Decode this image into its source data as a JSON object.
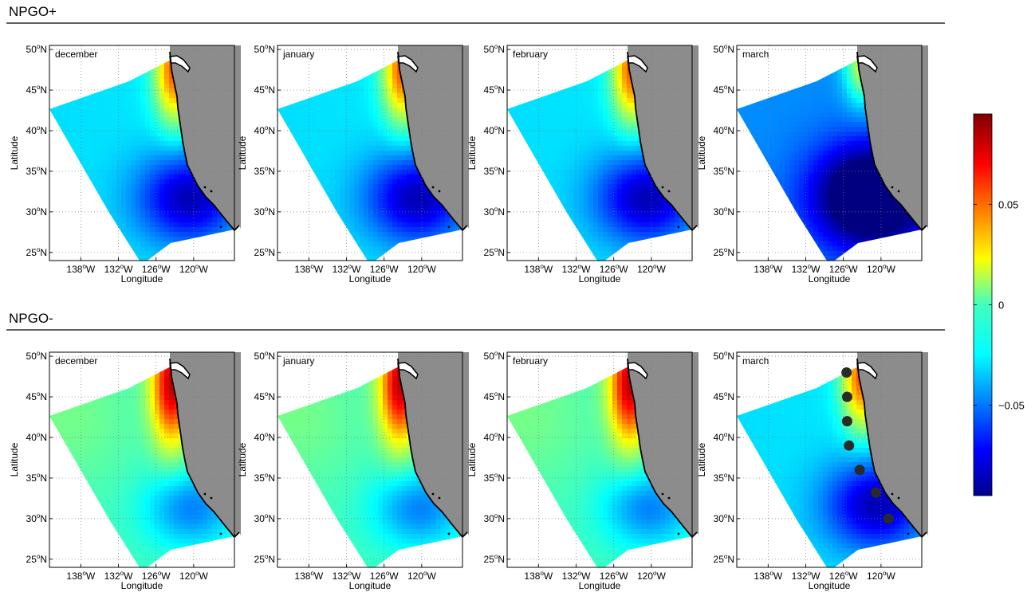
{
  "figure": {
    "sections": [
      {
        "id": "plus",
        "title": "NPGO+",
        "months": [
          "december",
          "january",
          "february",
          "march"
        ],
        "monthly_pattern": [
          "warm-north-cool-south",
          "warm-north-cool-south",
          "warm-north-cool-south",
          "cool-dominant"
        ]
      },
      {
        "id": "minus",
        "title": "NPGO-",
        "months": [
          "december",
          "january",
          "february",
          "march"
        ],
        "monthly_pattern": [
          "warm-north-weak-south",
          "warm-north-weak-south",
          "warm-north-weak-south",
          "warm-north-cool-south"
        ]
      }
    ],
    "axes": {
      "xlabel": "Longitude",
      "ylabel": "Latitude",
      "lat_ticks": [
        50,
        45,
        40,
        35,
        30,
        25
      ],
      "lat_hemisphere": "N",
      "lon_ticks": [
        138,
        132,
        126,
        120
      ],
      "lon_hemisphere": "W",
      "lat_range": [
        24,
        50.5
      ],
      "lon_range": [
        -143,
        -113.5
      ],
      "grid": "dotted",
      "degree_symbol": "o"
    },
    "colorbar": {
      "colormap": "jet",
      "range": [
        -0.095,
        0.095
      ],
      "ticks": [
        {
          "value": 0.05,
          "label": "0.05"
        },
        {
          "value": 0,
          "label": "0"
        },
        {
          "value": -0.05,
          "label": "−0.05"
        }
      ]
    },
    "stations": {
      "panel": "NPGO- march",
      "points": [
        {
          "lon": -125.5,
          "lat": 48.0
        },
        {
          "lon": -125.4,
          "lat": 45.0
        },
        {
          "lon": -125.4,
          "lat": 42.0
        },
        {
          "lon": -125.1,
          "lat": 39.0
        },
        {
          "lon": -123.4,
          "lat": 36.0
        },
        {
          "lon": -120.8,
          "lat": 33.2
        },
        {
          "lon": -118.8,
          "lat": 30.0
        }
      ]
    },
    "colors": {
      "land": "#8c8c8c",
      "coastline": "#000000",
      "station": "#2a2a2a"
    }
  }
}
